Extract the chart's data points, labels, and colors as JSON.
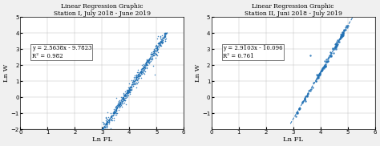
{
  "plot1": {
    "title_line1": "Linear Regression Graphic",
    "title_line2": "Station I, July 2018 - June 2019",
    "equation": "y = 2.5638x - 9.7823",
    "r2": "R² = 0.982",
    "xlabel": "Ln FL",
    "ylabel": "Ln W",
    "xlim": [
      0,
      6
    ],
    "ylim": [
      -2,
      5
    ],
    "xticks": [
      0,
      1,
      2,
      3,
      4,
      5,
      6
    ],
    "yticks": [
      -2,
      -1,
      0,
      1,
      2,
      3,
      4,
      5
    ],
    "slope": 2.5638,
    "intercept": -9.7823,
    "x_min": 2.95,
    "x_max": 5.35,
    "n_points": 500,
    "dot_color": "#2070b4",
    "dot_size": 1.2
  },
  "plot2": {
    "title_line1": "Linear Regression Graphic",
    "title_line2": "Station II, Juni 2018 - July 2019",
    "equation": "y = 2.9103x - 10.096",
    "r2": "R² = 0.761",
    "xlabel": "Ln FL",
    "ylabel": "Ln W",
    "xlim": [
      0,
      6
    ],
    "ylim": [
      -2,
      5
    ],
    "xticks": [
      0,
      1,
      2,
      3,
      4,
      5,
      6
    ],
    "yticks": [
      -1,
      0,
      1,
      2,
      3,
      4,
      5
    ],
    "slope": 2.9103,
    "intercept": -10.096,
    "n_points": 150,
    "dot_color": "#2070b4",
    "dot_size": 3.0
  },
  "background_color": "#f0f0f0",
  "plot_bg": "#ffffff",
  "annotation_fontsize": 5.0,
  "title_fontsize": 5.5,
  "label_fontsize": 6.0,
  "tick_fontsize": 5.0
}
